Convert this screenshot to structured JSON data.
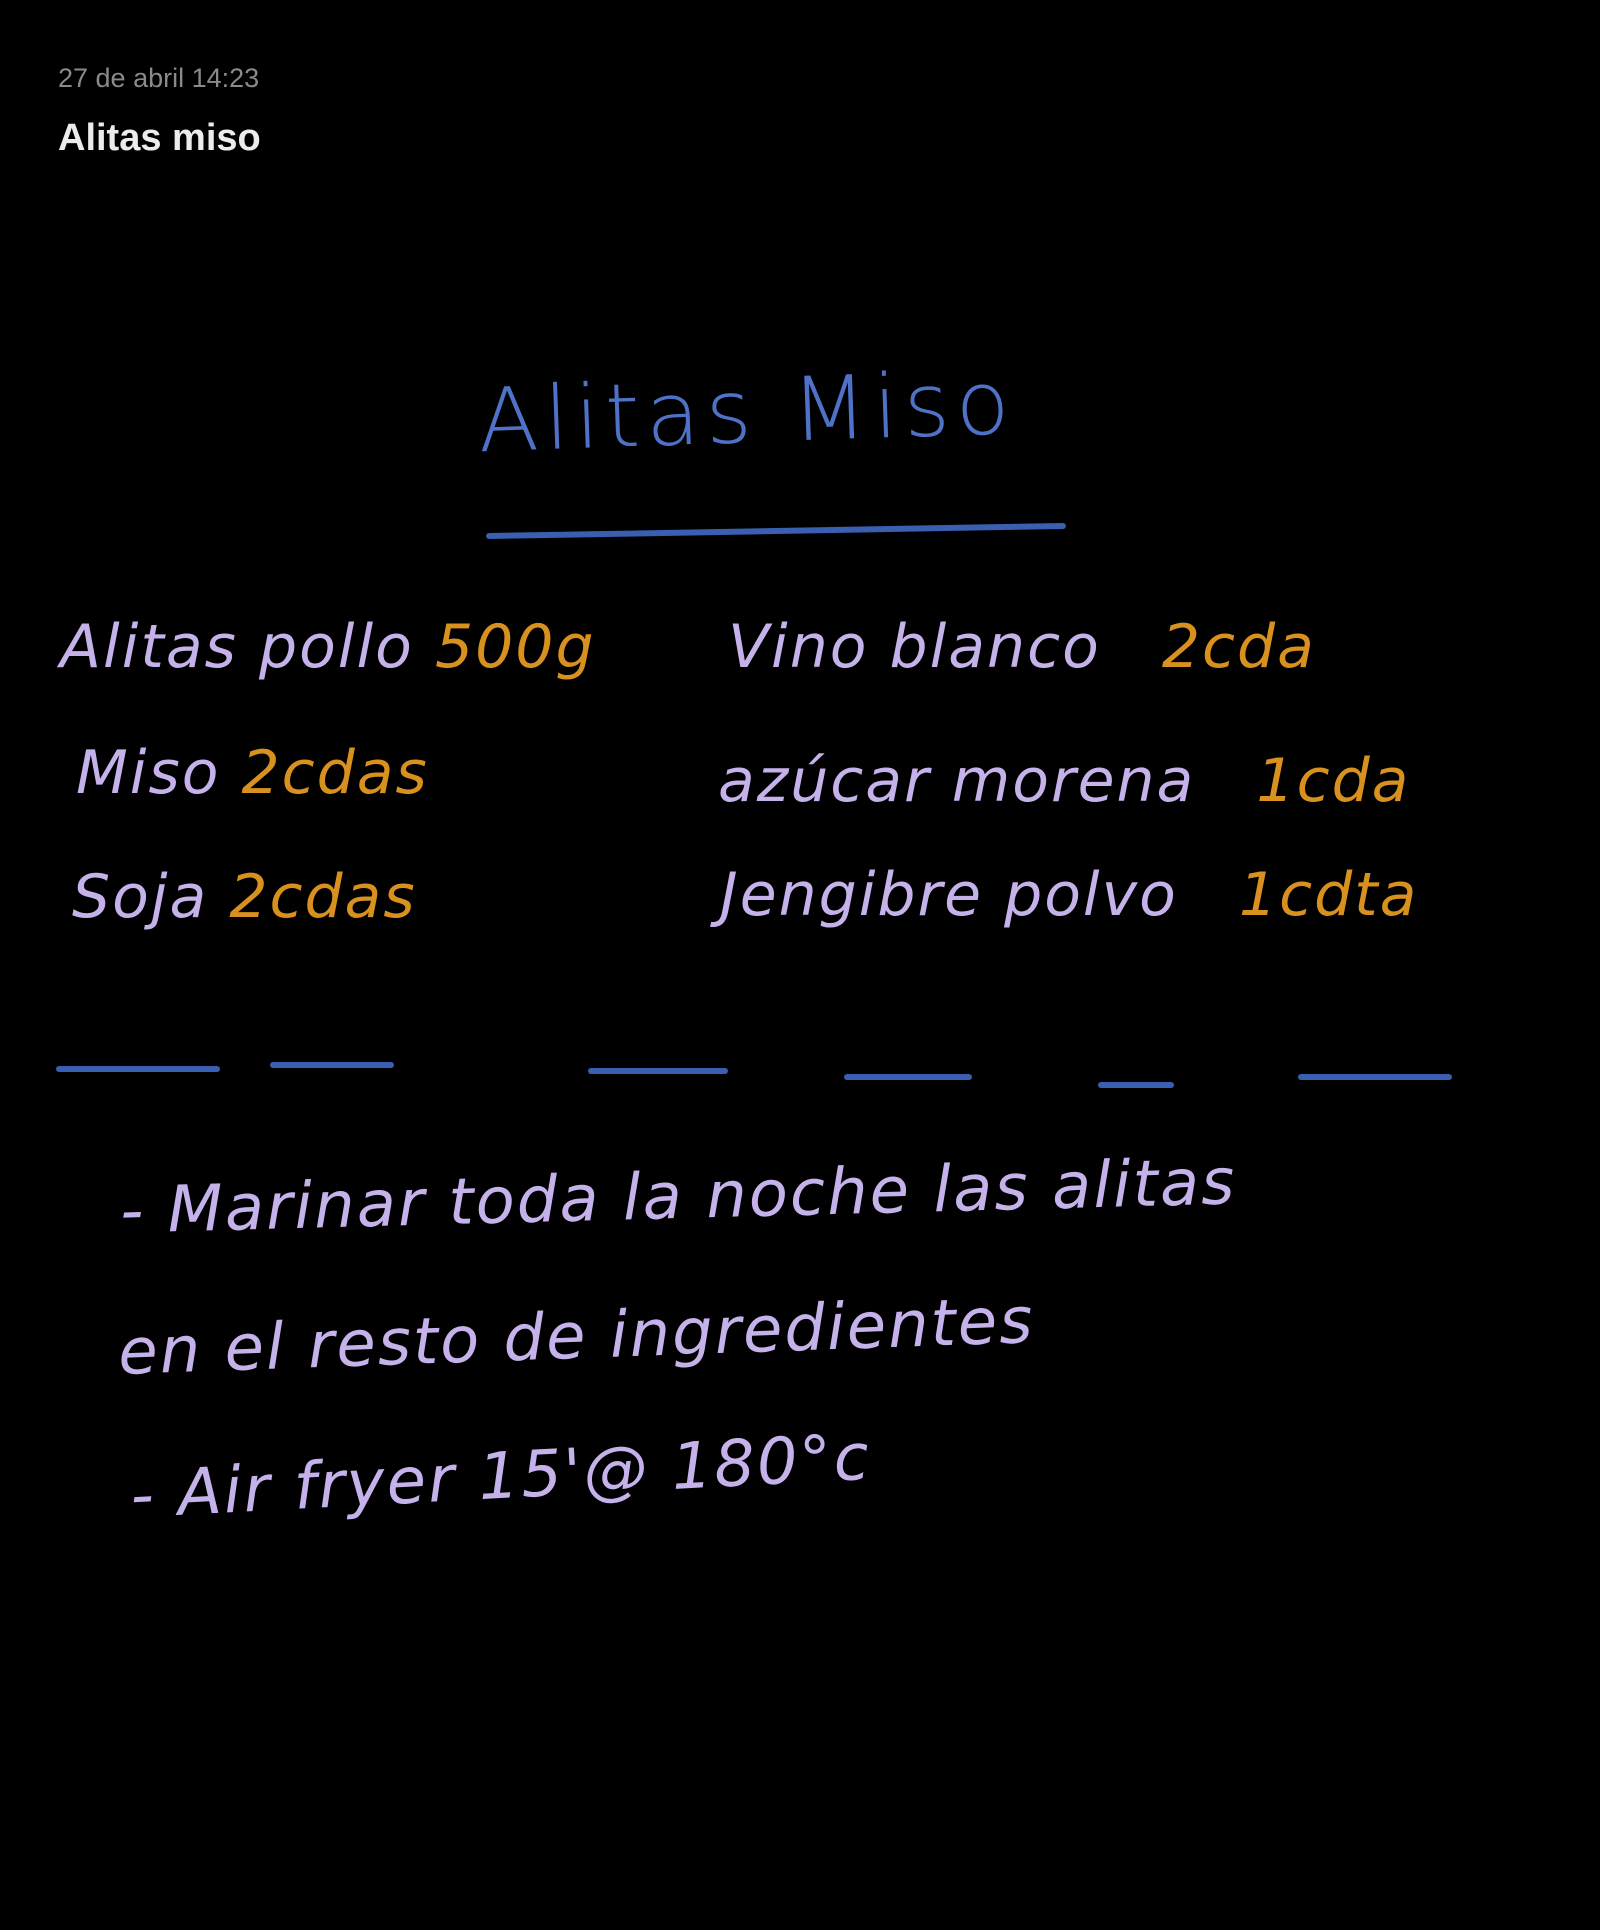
{
  "header": {
    "timestamp": "27 de abril 14:23",
    "title": "Alitas miso"
  },
  "colors": {
    "background": "#000000",
    "title_ink": "#4f72c8",
    "ingredient_ink": "#c6b2ea",
    "quantity_ink": "#d8911f",
    "divider_ink": "#3a5fb0"
  },
  "handwriting": {
    "title": "Alitas Miso",
    "ingredients_left": [
      {
        "name": "Alitas pollo",
        "qty": "500g"
      },
      {
        "name": "Miso",
        "qty": "2cdas"
      },
      {
        "name": "Soja",
        "qty": "2cdas"
      }
    ],
    "ingredients_right": [
      {
        "name": "Vino blanco",
        "qty": "2cda"
      },
      {
        "name": "azúcar morena",
        "qty": "1cda"
      },
      {
        "name": "Jengibre polvo",
        "qty": "1cdta"
      }
    ],
    "steps": [
      "- Marinar toda la noche las alitas",
      "en el resto de ingredientes",
      "- Air fryer  15'@ 180°c"
    ]
  }
}
